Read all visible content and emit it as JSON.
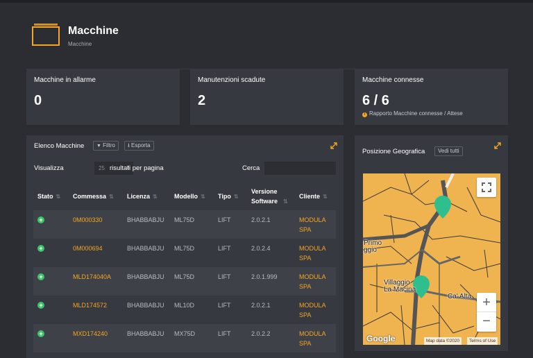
{
  "header": {
    "title": "Macchine",
    "subtitle": "Macchine",
    "icon": "folder-icon",
    "accent": "#f5a623"
  },
  "stats": [
    {
      "title": "Macchine in allarme",
      "value": "0"
    },
    {
      "title": "Manutenzioni scadute",
      "value": "2"
    },
    {
      "title": "Macchine connesse",
      "value": "6 / 6",
      "note": "Rapporto Macchine connesse / Attese"
    }
  ],
  "list": {
    "title": "Elenco Macchine",
    "filter_label": "Filtro",
    "export_label": "Esporta",
    "show_label": "Visualizza",
    "page_size": "25",
    "per_page_label": "risultati per pagina",
    "search_label": "Cerca",
    "search_value": "",
    "columns": [
      "Stato",
      "Commessa",
      "Licenza",
      "Modello",
      "Tipo",
      "Versione Software",
      "Cliente"
    ],
    "rows": [
      {
        "commessa": "0M000330",
        "licenza": "BHABBABJU",
        "modello": "ML75D",
        "tipo": "LIFT",
        "versione": "2.0.2.1",
        "cliente": "MODULA SPA"
      },
      {
        "commessa": "0M000694",
        "licenza": "BHABBABJU",
        "modello": "ML75D",
        "tipo": "LIFT",
        "versione": "2.0.2.4",
        "cliente": "MODULA SPA"
      },
      {
        "commessa": "MLD174040A",
        "licenza": "BHABBABJU",
        "modello": "ML75D",
        "tipo": "LIFT",
        "versione": "2.0.1.999",
        "cliente": "MODULA SPA"
      },
      {
        "commessa": "MLD174572",
        "licenza": "BHABBABJU",
        "modello": "ML10D",
        "tipo": "LIFT",
        "versione": "2.0.2.1",
        "cliente": "MODULA SPA"
      },
      {
        "commessa": "MXD174240",
        "licenza": "BHABBABJU",
        "modello": "MX75D",
        "tipo": "LIFT",
        "versione": "2.0.2.2",
        "cliente": "MODULA SPA"
      }
    ]
  },
  "geo": {
    "title": "Posizione Geografica",
    "view_all_label": "Vedi tutti",
    "map": {
      "labels": [
        "Primo",
        "ggio",
        "Villaggio",
        "La Macina",
        "Ca' Alta"
      ],
      "zoom_in": "+",
      "zoom_out": "−",
      "fullscreen_icon": "fullscreen-icon",
      "logo": "Google",
      "attribution_data": "Map data ©2020",
      "attribution_terms": "Terms of Use",
      "marker_color": "#2fbf8f",
      "land_color": "#efb350"
    }
  }
}
